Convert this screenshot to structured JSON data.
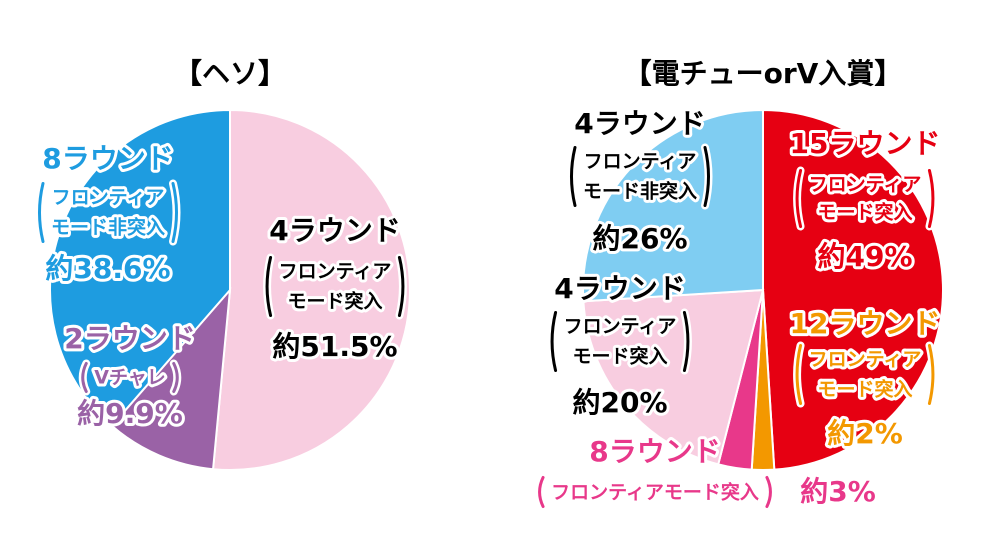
{
  "chart_data": [
    {
      "type": "pie",
      "title": "【ヘソ】",
      "categories": [
        "4ラウンド",
        "2ラウンド",
        "8ラウンド"
      ],
      "sublabels": [
        [
          "フロンティア",
          "モード突入"
        ],
        [
          "Vチャレ"
        ],
        [
          "フロンティア",
          "モード非突入"
        ]
      ],
      "values": [
        51.5,
        9.9,
        38.6
      ],
      "value_labels": [
        "約51.5%",
        "約9.9%",
        "約38.6%"
      ],
      "colors": [
        "#f8cde0",
        "#9a62a6",
        "#1e9ce0"
      ],
      "label_colors": [
        "#000000",
        "#9a62a6",
        "#1e9ce0"
      ]
    },
    {
      "type": "pie",
      "title": "【電チューorV入賞】",
      "categories": [
        "15ラウンド",
        "12ラウンド",
        "8ラウンド",
        "4ラウンド",
        "4ラウンド"
      ],
      "sublabels": [
        [
          "フロンティア",
          "モード突入"
        ],
        [
          "フロンティア",
          "モード突入"
        ],
        [
          "フロンティアモード突入"
        ],
        [
          "フロンティア",
          "モード突入"
        ],
        [
          "フロンティア",
          "モード非突入"
        ]
      ],
      "values": [
        49,
        2,
        3,
        20,
        26
      ],
      "value_labels": [
        "約49%",
        "約2%",
        "約3%",
        "約20%",
        "約26%"
      ],
      "colors": [
        "#e60012",
        "#f39800",
        "#e8388a",
        "#f8cde0",
        "#7fcdf2"
      ],
      "label_colors": [
        "#e60012",
        "#f39800",
        "#e8388a",
        "#000000",
        "#000000"
      ]
    }
  ]
}
